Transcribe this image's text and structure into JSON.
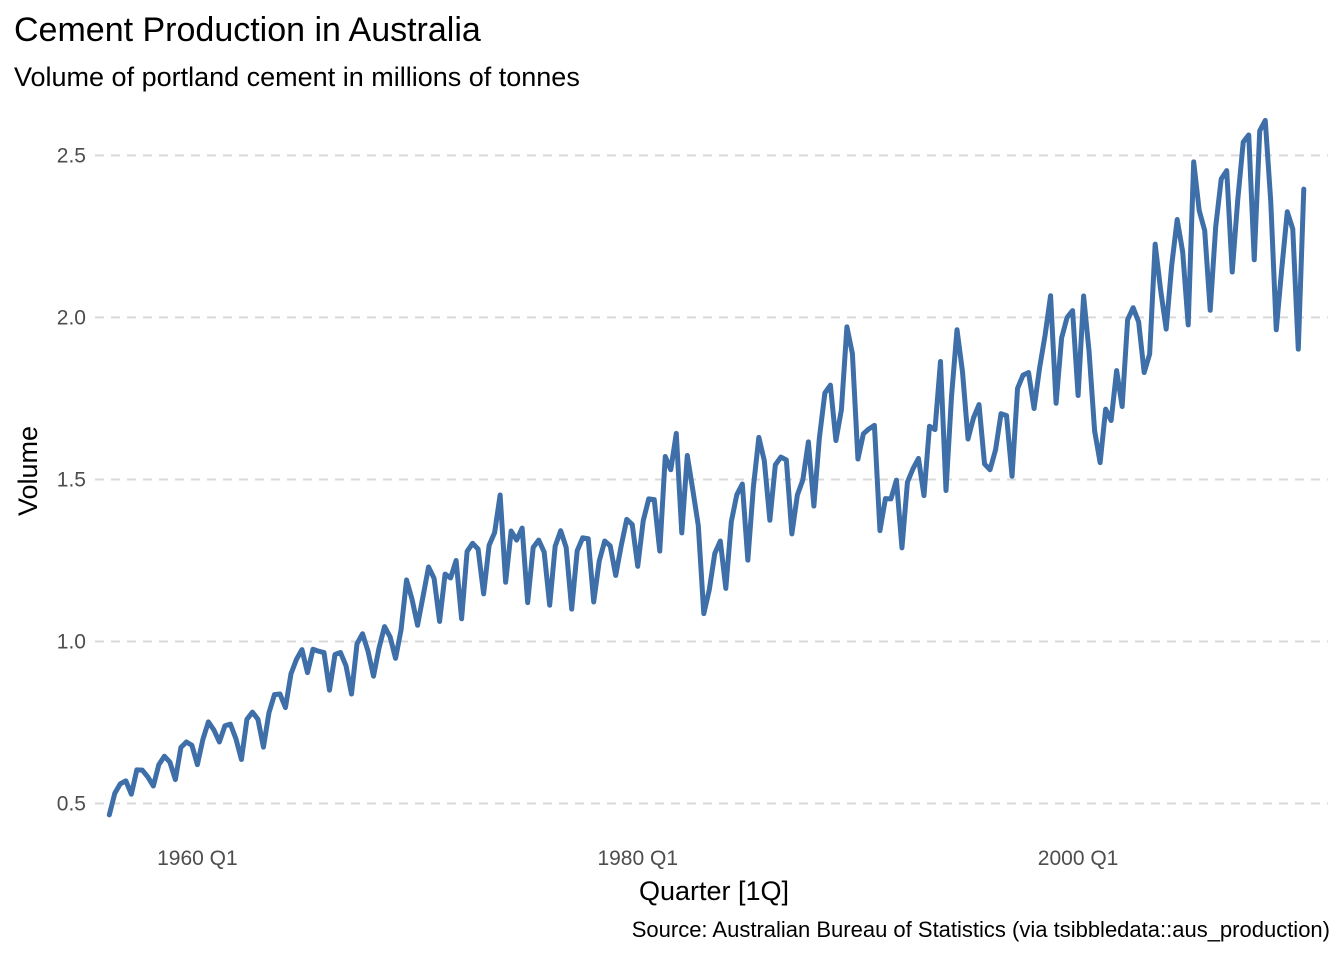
{
  "chart_data": {
    "type": "line",
    "title": "Cement Production in Australia",
    "subtitle": "Volume of portland cement in millions of tonnes",
    "caption": "Source: Australian Bureau of Statistics (via tsibbledata::aus_production)",
    "xlabel": "Quarter [1Q]",
    "ylabel": "Volume",
    "x_ticks": [
      {
        "label": "1960 Q1",
        "year": 1960
      },
      {
        "label": "1980 Q1",
        "year": 1980
      },
      {
        "label": "2000 Q1",
        "year": 2000
      }
    ],
    "y_ticks": [
      {
        "label": "0.5",
        "value": 0.5
      },
      {
        "label": "1.0",
        "value": 1.0
      },
      {
        "label": "1.5",
        "value": 1.5
      },
      {
        "label": "2.0",
        "value": 2.0
      },
      {
        "label": "2.5",
        "value": 2.5
      }
    ],
    "xlim": [
      1955.35,
      2011.35
    ],
    "ylim": [
      0.44,
      2.64
    ],
    "grid": "horizontal-dashed",
    "legend": "none",
    "line_color": "#3e6fa8",
    "series": [
      {
        "start_year": 1956,
        "start_quarter": 1,
        "values": [
          0.465,
          0.532,
          0.561,
          0.57,
          0.529,
          0.604,
          0.603,
          0.582,
          0.554,
          0.62,
          0.646,
          0.628,
          0.574,
          0.673,
          0.69,
          0.68,
          0.62,
          0.698,
          0.752,
          0.727,
          0.69,
          0.74,
          0.745,
          0.7,
          0.636,
          0.76,
          0.782,
          0.76,
          0.674,
          0.78,
          0.836,
          0.838,
          0.796,
          0.9,
          0.945,
          0.975,
          0.904,
          0.976,
          0.97,
          0.966,
          0.85,
          0.96,
          0.966,
          0.925,
          0.838,
          0.993,
          1.024,
          0.97,
          0.893,
          0.98,
          1.046,
          1.015,
          0.948,
          1.036,
          1.19,
          1.13,
          1.05,
          1.14,
          1.23,
          1.195,
          1.062,
          1.208,
          1.196,
          1.25,
          1.07,
          1.278,
          1.303,
          1.285,
          1.147,
          1.297,
          1.336,
          1.452,
          1.183,
          1.341,
          1.313,
          1.35,
          1.12,
          1.29,
          1.313,
          1.276,
          1.112,
          1.294,
          1.342,
          1.29,
          1.1,
          1.28,
          1.32,
          1.317,
          1.122,
          1.248,
          1.31,
          1.295,
          1.204,
          1.296,
          1.377,
          1.361,
          1.232,
          1.373,
          1.44,
          1.438,
          1.279,
          1.571,
          1.53,
          1.642,
          1.335,
          1.574,
          1.468,
          1.358,
          1.086,
          1.16,
          1.272,
          1.31,
          1.164,
          1.37,
          1.453,
          1.486,
          1.251,
          1.475,
          1.63,
          1.557,
          1.374,
          1.545,
          1.569,
          1.56,
          1.332,
          1.452,
          1.499,
          1.616,
          1.418,
          1.629,
          1.767,
          1.791,
          1.62,
          1.715,
          1.971,
          1.888,
          1.563,
          1.641,
          1.656,
          1.667,
          1.342,
          1.441,
          1.44,
          1.498,
          1.289,
          1.492,
          1.533,
          1.565,
          1.45,
          1.664,
          1.654,
          1.864,
          1.466,
          1.755,
          1.962,
          1.832,
          1.625,
          1.69,
          1.731,
          1.548,
          1.53,
          1.591,
          1.703,
          1.697,
          1.51,
          1.781,
          1.822,
          1.83,
          1.719,
          1.844,
          1.945,
          2.067,
          1.735,
          1.936,
          2.0,
          2.021,
          1.759,
          2.066,
          1.893,
          1.65,
          1.552,
          1.717,
          1.682,
          1.836,
          1.725,
          1.993,
          2.03,
          1.986,
          1.83,
          1.887,
          2.226,
          2.084,
          1.964,
          2.16,
          2.302,
          2.202,
          1.977,
          2.48,
          2.33,
          2.268,
          2.022,
          2.28,
          2.427,
          2.453,
          2.14,
          2.362,
          2.541,
          2.563,
          2.178,
          2.576,
          2.608,
          2.358,
          1.962,
          2.15,
          2.326,
          2.273,
          1.902,
          2.396
        ]
      }
    ]
  }
}
